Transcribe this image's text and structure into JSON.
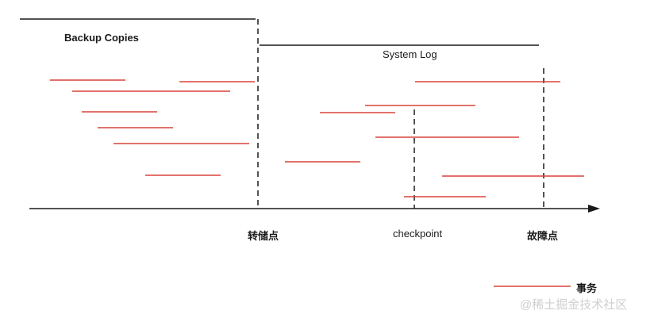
{
  "sections": {
    "backup": {
      "label": "Backup Copies"
    },
    "log": {
      "label": "System Log"
    }
  },
  "timeline": {
    "markers": [
      {
        "label": "转储点"
      },
      {
        "label": "checkpoint"
      },
      {
        "label": "故障点"
      }
    ]
  },
  "legend": {
    "label": "事务"
  },
  "watermark": "@稀土掘金技术社区",
  "colors": {
    "transaction": "#d9443b",
    "line": "#1a1a1a",
    "watermark": "#cfcfcf"
  }
}
